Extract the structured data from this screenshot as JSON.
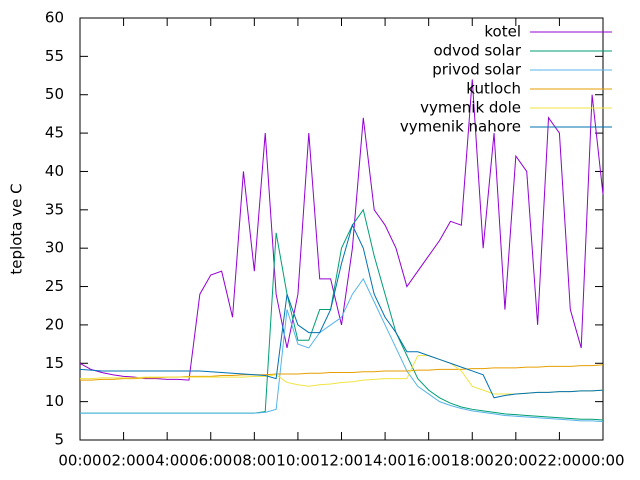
{
  "chart_data": {
    "type": "line",
    "ylabel": "teplota ve C",
    "x": [
      0,
      0.5,
      1,
      1.5,
      2,
      2.5,
      3,
      3.5,
      4,
      4.5,
      5,
      5.5,
      6,
      6.5,
      7,
      7.5,
      8,
      8.5,
      9,
      9.5,
      10,
      10.5,
      11,
      11.5,
      12,
      12.5,
      13,
      13.5,
      14,
      14.5,
      15,
      15.5,
      16,
      16.5,
      17,
      17.5,
      18,
      18.5,
      19,
      19.5,
      20,
      20.5,
      21,
      21.5,
      22,
      22.5,
      23,
      23.5,
      24
    ],
    "xlim": [
      0,
      24
    ],
    "xticks": [
      {
        "value": 0,
        "label": "00:00"
      },
      {
        "value": 2,
        "label": "02:00"
      },
      {
        "value": 4,
        "label": "04:00"
      },
      {
        "value": 6,
        "label": "06:00"
      },
      {
        "value": 8,
        "label": "08:00"
      },
      {
        "value": 10,
        "label": "10:00"
      },
      {
        "value": 12,
        "label": "12:00"
      },
      {
        "value": 14,
        "label": "14:00"
      },
      {
        "value": 16,
        "label": "16:00"
      },
      {
        "value": 18,
        "label": "18:00"
      },
      {
        "value": 20,
        "label": "20:00"
      },
      {
        "value": 22,
        "label": "22:00"
      },
      {
        "value": 24,
        "label": "00:00"
      }
    ],
    "ylim": [
      5,
      60
    ],
    "yticks": [
      5,
      10,
      15,
      20,
      25,
      30,
      35,
      40,
      45,
      50,
      55,
      60
    ],
    "grid": false,
    "legend": "top-right",
    "series": [
      {
        "name": "kotel",
        "color": "#9400d3",
        "values": [
          15,
          14.2,
          13.8,
          13.5,
          13.3,
          13.2,
          13.0,
          13.0,
          12.9,
          12.9,
          12.8,
          24,
          26.5,
          27,
          21,
          40,
          27,
          45,
          24,
          17,
          24,
          45,
          26,
          26,
          20,
          30,
          47,
          35,
          33,
          30,
          25,
          27,
          29,
          31,
          33.5,
          33,
          52,
          30,
          45,
          22,
          42,
          40,
          20,
          47,
          45,
          22,
          17,
          50,
          37
        ]
      },
      {
        "name": "odvod solar",
        "color": "#009e73",
        "values": [
          8.5,
          8.5,
          8.5,
          8.5,
          8.5,
          8.5,
          8.5,
          8.5,
          8.5,
          8.5,
          8.5,
          8.5,
          8.5,
          8.5,
          8.5,
          8.5,
          8.5,
          8.7,
          32,
          24,
          18,
          18,
          22,
          22,
          30,
          33,
          35,
          29,
          24,
          19,
          16,
          13,
          11.5,
          10.5,
          9.8,
          9.3,
          9,
          8.8,
          8.6,
          8.4,
          8.3,
          8.2,
          8.1,
          8,
          7.9,
          7.8,
          7.7,
          7.7,
          7.6
        ]
      },
      {
        "name": "privod solar",
        "color": "#56b4e9",
        "values": [
          8.5,
          8.5,
          8.5,
          8.5,
          8.5,
          8.5,
          8.5,
          8.5,
          8.5,
          8.5,
          8.5,
          8.5,
          8.5,
          8.5,
          8.5,
          8.5,
          8.5,
          8.6,
          9,
          22,
          17.5,
          17,
          19,
          20,
          21,
          24,
          26,
          23,
          20,
          17,
          14,
          12,
          11,
          10,
          9.5,
          9.1,
          8.8,
          8.6,
          8.4,
          8.2,
          8.1,
          8,
          7.9,
          7.8,
          7.7,
          7.6,
          7.5,
          7.5,
          7.4
        ]
      },
      {
        "name": "kutloch",
        "color": "#e69f00",
        "values": [
          12.8,
          12.8,
          12.9,
          12.9,
          13.0,
          13.0,
          13.1,
          13.1,
          13.2,
          13.2,
          13.3,
          13.3,
          13.3,
          13.4,
          13.4,
          13.5,
          13.5,
          13.5,
          13.6,
          13.6,
          13.6,
          13.7,
          13.7,
          13.8,
          13.8,
          13.8,
          13.9,
          13.9,
          14.0,
          14.0,
          14.0,
          14.1,
          14.1,
          14.2,
          14.2,
          14.2,
          14.3,
          14.3,
          14.4,
          14.4,
          14.4,
          14.5,
          14.5,
          14.6,
          14.6,
          14.6,
          14.7,
          14.7,
          14.8
        ]
      },
      {
        "name": "vymenik dole",
        "color": "#f0e442",
        "values": [
          13.0,
          13.0,
          13.1,
          13.1,
          13.1,
          13.1,
          13.2,
          13.2,
          13.2,
          13.2,
          13.2,
          13.2,
          13.2,
          13.2,
          13.2,
          13.2,
          13.3,
          13.3,
          13.5,
          12.5,
          12.2,
          12,
          12.2,
          12.3,
          12.5,
          12.6,
          12.8,
          12.9,
          13,
          13,
          13,
          16,
          16,
          15.5,
          15,
          14,
          12,
          11.5,
          11,
          11,
          11,
          11.1,
          11.2,
          11.2,
          11.3,
          11.3,
          11.4,
          11.4,
          11.5
        ]
      },
      {
        "name": "vymenik nahore",
        "color": "#0072b2",
        "values": [
          14.2,
          14.1,
          14.0,
          14.0,
          14.0,
          14.0,
          14.0,
          14.0,
          14.0,
          14.0,
          14.0,
          14.0,
          13.9,
          13.8,
          13.7,
          13.6,
          13.5,
          13.4,
          13,
          24,
          20,
          19,
          19,
          22,
          28,
          33,
          30,
          24,
          21,
          19,
          16.5,
          16.5,
          16,
          15.5,
          15,
          14.5,
          14,
          13.5,
          10.5,
          10.8,
          11,
          11.1,
          11.2,
          11.2,
          11.3,
          11.3,
          11.4,
          11.4,
          11.5
        ]
      }
    ]
  }
}
